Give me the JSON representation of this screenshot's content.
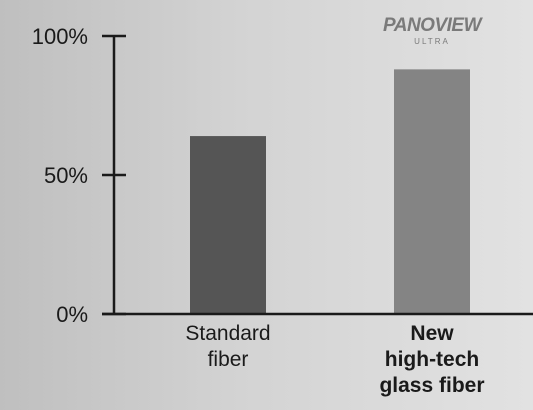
{
  "chart_data": {
    "type": "bar",
    "title": "",
    "xlabel": "",
    "ylabel": "",
    "ylim": [
      0,
      100
    ],
    "yticks": [
      {
        "value": 100,
        "label": "100%"
      },
      {
        "value": 50,
        "label": "50%"
      },
      {
        "value": 0,
        "label": "0%"
      }
    ],
    "categories": [
      {
        "label_lines": [
          "Standard",
          "fiber"
        ],
        "bold": false
      },
      {
        "label_lines": [
          "New",
          "high-tech",
          "glass fiber"
        ],
        "bold": true
      }
    ],
    "values": [
      64,
      88
    ],
    "bar_colors": [
      "#555555",
      "#848484"
    ],
    "axis_color": "#1a1a1a",
    "legend": "none",
    "grid": false,
    "logo": {
      "brand": "PANOVIEW",
      "sub": "ULTRA",
      "over_category": 1,
      "color": "#7a7a7a"
    }
  }
}
